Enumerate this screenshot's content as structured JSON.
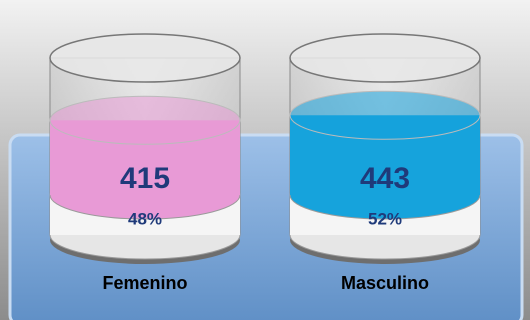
{
  "chart_data": {
    "type": "cylinder",
    "categories": [
      "Femenino",
      "Masculino"
    ],
    "values": [
      415,
      443
    ],
    "shares": {
      "values": [
        48,
        52
      ],
      "value_labels": [
        "48%",
        "52%"
      ]
    },
    "colors": [
      "#e89ad6",
      "#16a3dc"
    ]
  }
}
